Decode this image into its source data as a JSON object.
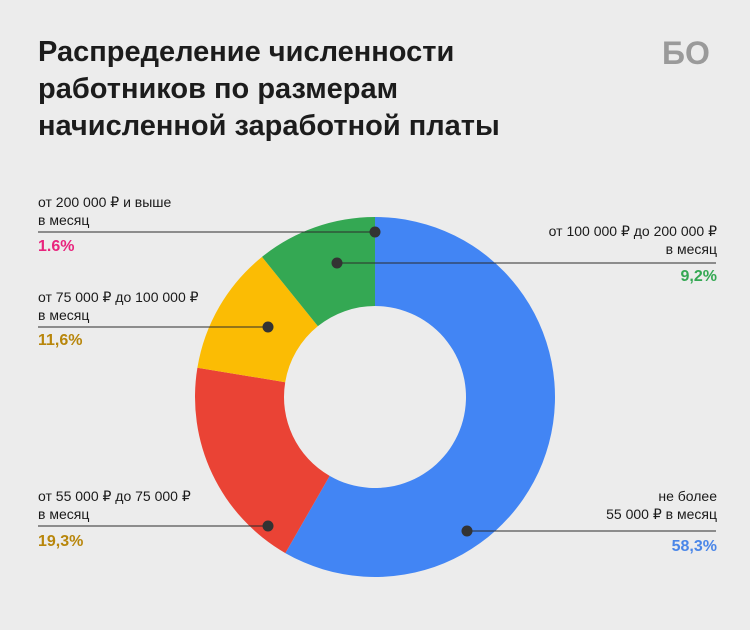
{
  "title": "Распределение численности\nработников по размерам\nначисленной заработной платы",
  "logo_text": "БО",
  "colors": {
    "blue": "#4285f4",
    "red": "#ea4335",
    "yellow": "#fbbc04",
    "green": "#34a853",
    "pink": "#e8247d",
    "amber": "#b8860b",
    "green_text": "#34a853",
    "blue_text": "#4a86e8"
  },
  "chart_data": {
    "type": "pie",
    "title": "Распределение численности работников по размерам начисленной заработной платы",
    "slices": [
      {
        "label": "не более\n55 000 ₽ в месяц",
        "value": 58.3,
        "value_label": "58,3%",
        "color": "#4285f4"
      },
      {
        "label": "от 55 000 ₽ до 75 000 ₽\nв месяц",
        "value": 19.3,
        "value_label": "19,3%",
        "color": "#ea4335"
      },
      {
        "label": "от 75 000 ₽ до 100 000 ₽\nв месяц",
        "value": 11.6,
        "value_label": "11,6%",
        "color": "#fbbc04"
      },
      {
        "label": "от 100 000 ₽ до 200 000 ₽\nв месяц",
        "value": 9.2,
        "value_label": "9,2%",
        "color": "#34a853"
      },
      {
        "label": "от 200 000 ₽ и выше\nв месяц",
        "value": 1.6,
        "value_label": "1.6%",
        "color": "#34a853"
      }
    ]
  }
}
